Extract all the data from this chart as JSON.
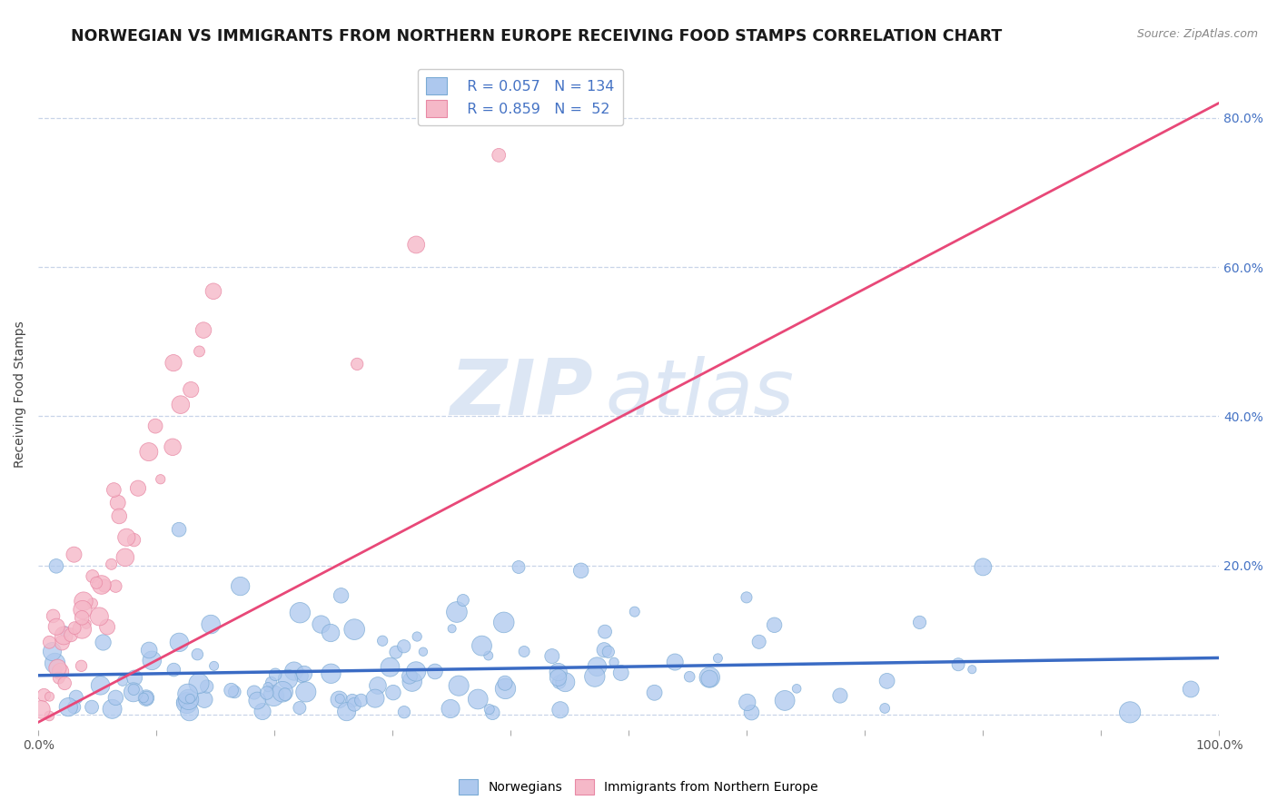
{
  "title": "NORWEGIAN VS IMMIGRANTS FROM NORTHERN EUROPE RECEIVING FOOD STAMPS CORRELATION CHART",
  "source": "Source: ZipAtlas.com",
  "ylabel": "Receiving Food Stamps",
  "xlabel": "",
  "xlim": [
    0,
    1.0
  ],
  "ylim": [
    -0.02,
    0.88
  ],
  "yticks": [
    0.0,
    0.2,
    0.4,
    0.6,
    0.8
  ],
  "ytick_labels_left": [
    "",
    "",
    "",
    "",
    ""
  ],
  "xticks": [
    0.0,
    0.1,
    0.2,
    0.3,
    0.4,
    0.5,
    0.6,
    0.7,
    0.8,
    0.9,
    1.0
  ],
  "xtick_labels": [
    "0.0%",
    "",
    "",
    "",
    "",
    "",
    "",
    "",
    "",
    "",
    "100.0%"
  ],
  "right_ytick_labels": [
    "20.0%",
    "40.0%",
    "60.0%",
    "80.0%"
  ],
  "right_yticks": [
    0.2,
    0.4,
    0.6,
    0.8
  ],
  "norwegian_color": "#adc8ee",
  "norwegian_edge_color": "#7aaad4",
  "immigrant_color": "#f5b8c8",
  "immigrant_edge_color": "#e888a4",
  "line_norwegian_color": "#3a6bc4",
  "line_immigrant_color": "#e84878",
  "legend_R_norwegian": "0.057",
  "legend_N_norwegian": "134",
  "legend_R_immigrant": "0.859",
  "legend_N_immigrant": "52",
  "legend_text_color": "#4472c4",
  "watermark_zip": "ZIP",
  "watermark_atlas": "atlas",
  "watermark_color": "#dce6f4",
  "background_color": "#ffffff",
  "grid_color": "#c8d4e8",
  "title_fontsize": 12.5,
  "n_norwegian": 134,
  "n_immigrant": 52
}
